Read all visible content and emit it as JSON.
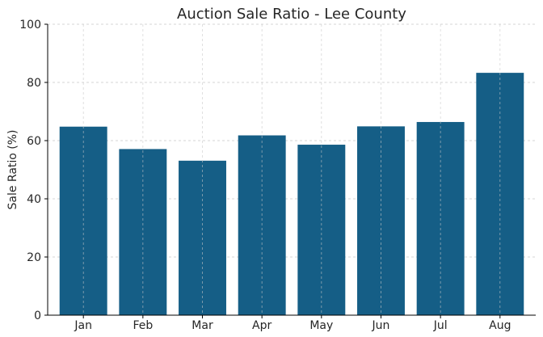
{
  "chart_data": {
    "type": "bar",
    "title": "Auction Sale Ratio - Lee County",
    "xlabel": "",
    "ylabel": "Sale Ratio (%)",
    "categories": [
      "Jan",
      "Feb",
      "Mar",
      "Apr",
      "May",
      "Jun",
      "Jul",
      "Aug"
    ],
    "values": [
      64.8,
      57.1,
      53.1,
      61.8,
      58.6,
      64.9,
      66.4,
      83.3
    ],
    "ylim": [
      0,
      100
    ],
    "yticks": [
      0,
      20,
      40,
      60,
      80,
      100
    ],
    "grid": true,
    "bar_color": "#155e86"
  }
}
